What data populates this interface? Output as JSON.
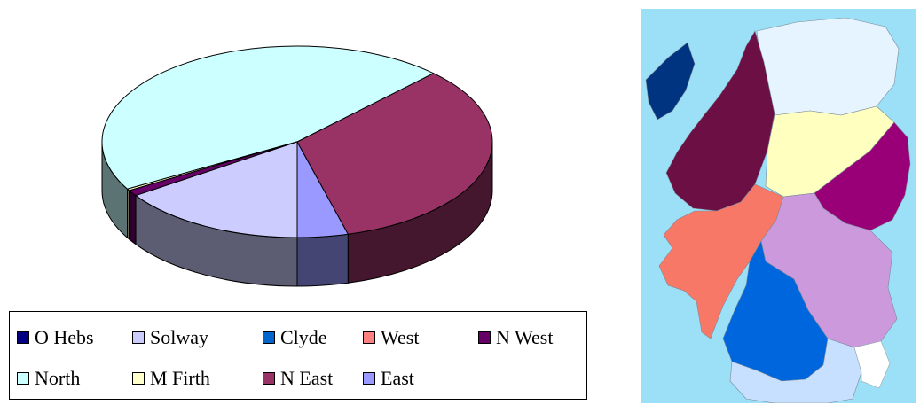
{
  "chart_data": {
    "type": "pie",
    "style": "3d",
    "slices": [
      {
        "name": "O Hebs",
        "value": 0.0,
        "color": "#000080"
      },
      {
        "name": "Solway",
        "value": 15.5,
        "color": "#ccccff"
      },
      {
        "name": "Clyde",
        "value": 0.0,
        "color": "#0066cc"
      },
      {
        "name": "West",
        "value": 0.0,
        "color": "#ff8080"
      },
      {
        "name": "N West",
        "value": 1.0,
        "color": "#660066"
      },
      {
        "name": "North",
        "value": 45.5,
        "color": "#ccffff"
      },
      {
        "name": "M Firth",
        "value": 0.3,
        "color": "#ffffcc"
      },
      {
        "name": "N East",
        "value": 33.5,
        "color": "#993366"
      },
      {
        "name": "East",
        "value": 4.2,
        "color": "#9999ff"
      }
    ],
    "legend_position": "bottom"
  },
  "legend_items": [
    {
      "label": "O Hebs",
      "color": "#000080"
    },
    {
      "label": "Solway",
      "color": "#ccccff"
    },
    {
      "label": "Clyde",
      "color": "#0066cc"
    },
    {
      "label": "West",
      "color": "#ff8080"
    },
    {
      "label": "N West",
      "color": "#660066"
    },
    {
      "label": "North",
      "color": "#ccffff"
    },
    {
      "label": "M Firth",
      "color": "#ffffcc"
    },
    {
      "label": "N East",
      "color": "#993366"
    },
    {
      "label": "East",
      "color": "#9999ff"
    }
  ],
  "map": {
    "sea_color": "#9be0f7",
    "regions": [
      {
        "name": "O Hebs",
        "color": "#003380"
      },
      {
        "name": "North",
        "color": "#e6f4ff"
      },
      {
        "name": "N West",
        "color": "#6b0f45"
      },
      {
        "name": "M Firth",
        "color": "#ffffc0"
      },
      {
        "name": "N East",
        "color": "#990077"
      },
      {
        "name": "West",
        "color": "#f87868"
      },
      {
        "name": "East",
        "color": "#cc99dd"
      },
      {
        "name": "Clyde",
        "color": "#0066dd"
      },
      {
        "name": "Solway",
        "color": "#c8e0ff"
      }
    ]
  }
}
